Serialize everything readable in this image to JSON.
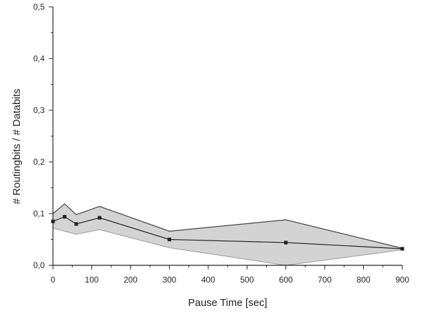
{
  "chart_data": {
    "type": "line",
    "title": "",
    "xlabel": "Pause Time [sec]",
    "ylabel": "# Routingbits / # Databits",
    "xlim": [
      0,
      900
    ],
    "ylim": [
      0,
      0.5
    ],
    "x_ticks": [
      0,
      100,
      200,
      300,
      400,
      500,
      600,
      700,
      800,
      900
    ],
    "x_tick_labels": [
      "0",
      "100",
      "200",
      "300",
      "400",
      "500",
      "600",
      "700",
      "800",
      "900"
    ],
    "y_ticks": [
      0,
      0.1,
      0.2,
      0.3,
      0.4,
      0.5
    ],
    "y_tick_labels": [
      "0,0",
      "0,1",
      "0,2",
      "0,3",
      "0,4",
      "0,5"
    ],
    "grid": false,
    "legend": "none",
    "series": [
      {
        "x": [
          0,
          30,
          60,
          120,
          300,
          600,
          900
        ],
        "values": [
          0.085,
          0.094,
          0.08,
          0.092,
          0.05,
          0.044,
          0.032
        ],
        "marker": "square",
        "color": "#222222"
      }
    ],
    "band": {
      "x": [
        0,
        30,
        60,
        120,
        300,
        600,
        900
      ],
      "upper": [
        0.1,
        0.119,
        0.098,
        0.114,
        0.066,
        0.088,
        0.033
      ],
      "lower": [
        0.072,
        0.066,
        0.06,
        0.069,
        0.034,
        0.0,
        0.03
      ],
      "fill": "#d3d3d3",
      "stroke_upper": "#444444",
      "stroke_lower": "#9a9a9a"
    }
  }
}
